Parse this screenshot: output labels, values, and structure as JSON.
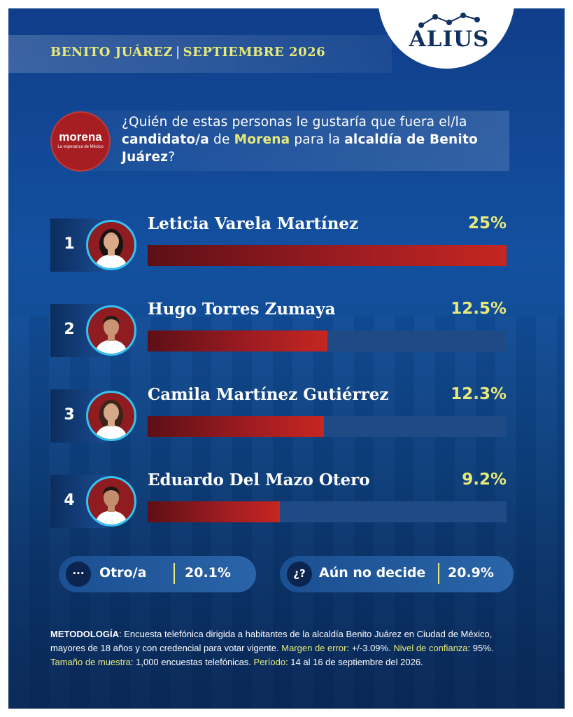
{
  "brand": {
    "logo_text": "ALIUS"
  },
  "header": {
    "location": "BENITO JUÁREZ",
    "date": "SEPTIEMBRE 2026"
  },
  "party": {
    "name": "morena",
    "tagline": "La esperanza de México"
  },
  "question": {
    "p1": "¿Quién de estas personas le gustaría que fuera el/la ",
    "b1": "candidato/a",
    "p2": " de ",
    "b2": "Morena",
    "p3": " para la ",
    "b3": "alcaldía de Benito Juárez",
    "p4": "?"
  },
  "chart_data": {
    "type": "bar",
    "orientation": "horizontal",
    "categories": [
      "Leticia Varela Martínez",
      "Hugo Torres Zumaya",
      "Camila Martínez Gutiérrez",
      "Eduardo Del Mazo Otero"
    ],
    "values": [
      25,
      12.5,
      12.3,
      9.2
    ],
    "value_labels": [
      "25%",
      "12.5%",
      "12.3%",
      "9.2%"
    ],
    "ranks": [
      "1",
      "2",
      "3",
      "4"
    ],
    "xlim": [
      0,
      25
    ]
  },
  "others": [
    {
      "icon": "···",
      "label": "Otro/a",
      "value": "20.1%"
    },
    {
      "icon": "¿?",
      "label": "Aún no decide",
      "value": "20.9%"
    }
  ],
  "methodology": {
    "label": "METODOLOGÍA",
    "text": ": Encuesta telefónica dirigida a habitantes de la alcaldía Benito Juárez en Ciudad de México, mayores de 18 años y con credencial para votar vigente. ",
    "error_label": "Margen de error",
    "error_value": ": +/-3.09%. ",
    "confidence_label": "Nivel de confianza",
    "confidence_value": ": 95%.",
    "sample_label": "Tamaño de muestra",
    "sample_value": ": 1,000 encuestas telefónicas. ",
    "period_label": "Período",
    "period_value": ": 14 al 16 de septiembre del 2026."
  },
  "colors": {
    "background": "#13509f",
    "accent_lime": "#e7ea7a",
    "bar_red": "#a11d22",
    "bar_track": "#1f4a86",
    "avatar_ring": "#35c3f0",
    "morena_red": "#a61e22"
  }
}
